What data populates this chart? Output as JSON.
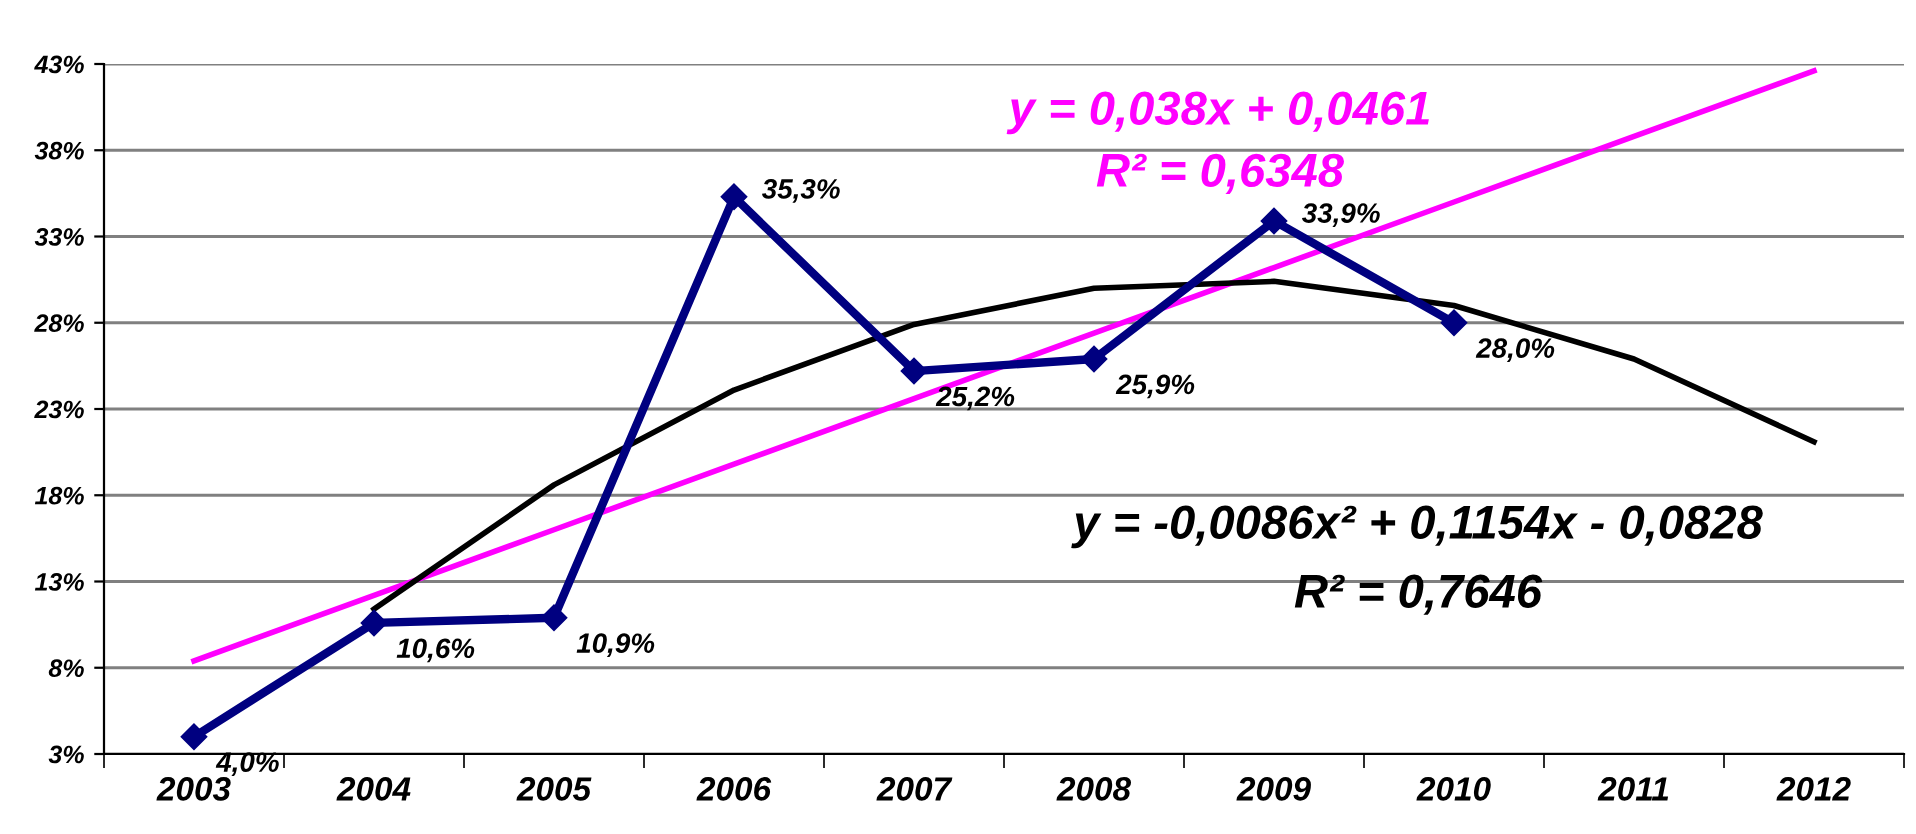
{
  "chart_data": {
    "type": "line",
    "categories": [
      "2003",
      "2004",
      "2005",
      "2006",
      "2007",
      "2008",
      "2009",
      "2010",
      "2011",
      "2012"
    ],
    "series": [
      {
        "color": "#000080",
        "values": [
          4.0,
          10.6,
          10.9,
          35.3,
          25.2,
          25.9,
          33.9,
          28.0,
          null,
          null
        ],
        "value_labels": [
          "4,0%",
          "10,6%",
          "10,9%",
          "35,3%",
          "25,2%",
          "25,9%",
          "33,9%",
          "28,0%",
          null,
          null
        ],
        "marker": "diamond"
      },
      {
        "type": "line",
        "color": "#ff00ff",
        "values": [
          8.4,
          12.2,
          16.0,
          19.8,
          23.6,
          27.4,
          31.2,
          35.0,
          38.8,
          42.6
        ]
      },
      {
        "type": "line",
        "color": "#000000",
        "values": [
          null,
          11.4,
          18.6,
          24.1,
          27.9,
          30.0,
          30.4,
          29.0,
          25.9,
          21.1
        ]
      }
    ],
    "annotations": [
      "y = 0,038x + 0,0461",
      "R² = 0,6348",
      "y = -0,0086x² + 0,1154x - 0,0828",
      "R² = 0,7646"
    ],
    "ylim": [
      3,
      43
    ],
    "yticks": [
      {
        "value": 3,
        "label": "3%"
      },
      {
        "value": 8,
        "label": "8%"
      },
      {
        "value": 13,
        "label": "13%"
      },
      {
        "value": 18,
        "label": "18%"
      },
      {
        "value": 23,
        "label": "23%"
      },
      {
        "value": 28,
        "label": "28%"
      },
      {
        "value": 33,
        "label": "33%"
      },
      {
        "value": 38,
        "label": "38%"
      },
      {
        "value": 43,
        "label": "43%"
      }
    ],
    "grid": "y",
    "legend": false
  }
}
